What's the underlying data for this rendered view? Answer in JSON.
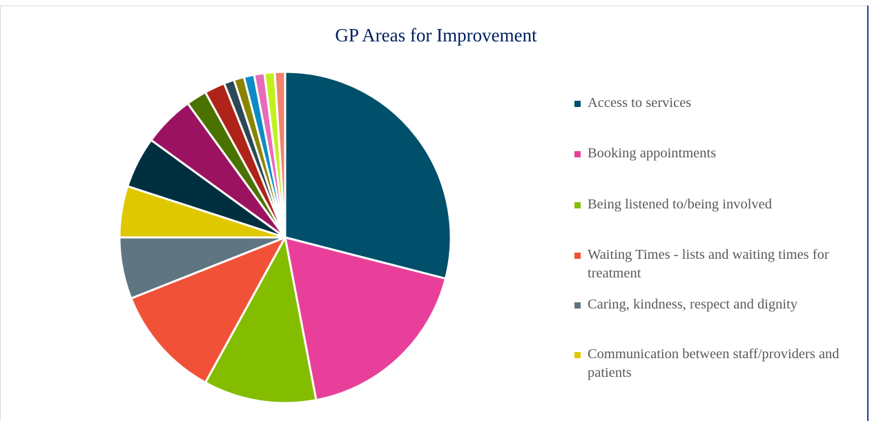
{
  "chart_data": {
    "type": "pie",
    "title": "GP Areas for Improvement",
    "categories": [
      "Access to services",
      "Booking appointments",
      "Being listened to/being involved",
      "Waiting Times - lists and waiting times for treatment",
      "Caring, kindness, respect and dignity",
      "Communication between staff/providers and patients",
      null,
      null,
      null,
      null,
      null,
      null,
      null,
      null,
      null,
      null
    ],
    "values": [
      29,
      18,
      11,
      11,
      6,
      5,
      5,
      5,
      2,
      2,
      1,
      1,
      1,
      1,
      1,
      1
    ],
    "colors": [
      "#004f6b",
      "#e8409a",
      "#84bd00",
      "#f15237",
      "#5f7582",
      "#e0c800",
      "#00303f",
      "#9b1360",
      "#4a7200",
      "#b02318",
      "#2d4756",
      "#8a8400",
      "#0b8cc6",
      "#e86bb9",
      "#c2f01e",
      "#f1836f"
    ]
  }
}
